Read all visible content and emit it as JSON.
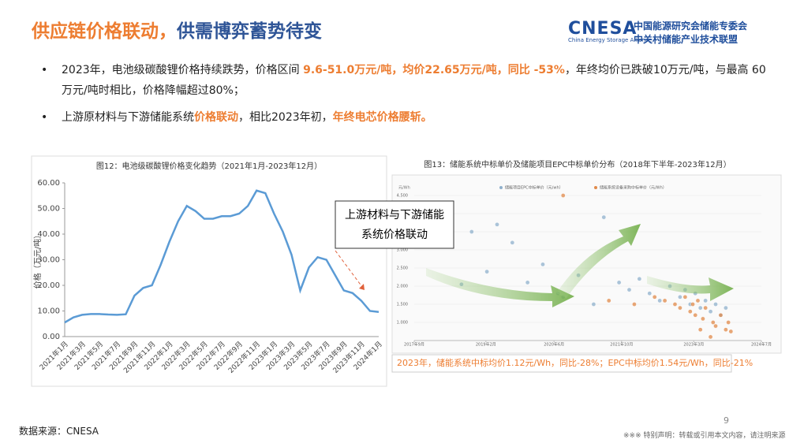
{
  "header": {
    "title_parts": [
      "供应链价格联动，",
      "供需博弈蓄势待变"
    ],
    "logo": {
      "name": "CNESA",
      "line1": "中国能源研究会储能专委会",
      "line2": "中关村储能产业技术联盟",
      "english": "China Energy Storage Alliance"
    }
  },
  "bullets": [
    [
      {
        "text": "2023年，电池级碳酸锂价格持续跌势，价格区间 ",
        "highlight": false
      },
      {
        "text": "9.6-51.0万元/吨，均价22.65万元/吨，同比 -53%",
        "highlight": true
      },
      {
        "text": "，年终均价已跌破10万元/吨，与最高 60万元/吨时相比，价格降幅超过80%；",
        "highlight": false
      }
    ],
    [
      {
        "text": "上游原材料与下游储能系统",
        "highlight": false
      },
      {
        "text": "价格联动",
        "highlight": true
      },
      {
        "text": "，相比2023年初，",
        "highlight": false
      },
      {
        "text": "年终电芯价格腰斩。",
        "highlight": true
      }
    ]
  ],
  "chart_data": [
    {
      "type": "line",
      "title": "图12：电池级碳酸锂价格变化趋势（2021年1月-2023年12月）",
      "y_label": "价格（万元/吨）",
      "color": "#5b9bd5",
      "categories": [
        "2021年1月",
        null,
        "2021年3月",
        null,
        "2021年5月",
        null,
        "2021年7月",
        null,
        "2021年9月",
        null,
        "2021年11月",
        null,
        "2022年1月",
        null,
        "2022年3月",
        null,
        "2022年5月",
        null,
        "2022年7月",
        null,
        "2022年9月",
        null,
        "2022年11月",
        null,
        "2023年1月",
        null,
        "2023年3月",
        null,
        "2023年5月",
        null,
        "2023年7月",
        null,
        "2023年9月",
        null,
        "2023年11月",
        null,
        "2024年1月"
      ],
      "values": [
        5.5,
        7.5,
        8.5,
        8.8,
        8.8,
        8.6,
        8.5,
        8.7,
        16,
        19,
        20,
        28,
        37,
        45,
        51,
        49,
        46,
        46,
        47,
        47,
        48,
        51,
        57,
        56,
        48,
        41,
        32,
        18,
        27,
        31,
        30,
        24,
        18,
        17,
        14,
        10,
        9.6
      ],
      "ylim": [
        0,
        60
      ],
      "yticks": [
        {
          "value": 0,
          "label": "0.00"
        },
        {
          "value": 10,
          "label": "10.00"
        },
        {
          "value": 20,
          "label": "20.00"
        },
        {
          "value": 30,
          "label": "30.00"
        },
        {
          "value": 40,
          "label": "40.00"
        },
        {
          "value": 50,
          "label": "50.00"
        },
        {
          "value": 60,
          "label": "60.00"
        }
      ]
    },
    {
      "type": "scatter",
      "title": "图13：储能系统中标单价及储能项目EPC中标单价分布（2018年下半年-2023年12月）",
      "y_unit": "元/Wh",
      "grid": true,
      "series": [
        {
          "name": "储能项目EPC中标单价（元/wh）",
          "color": "#8fb0cc",
          "x": [
            2018.6,
            2018.8,
            2019.1,
            2019.3,
            2019.6,
            2019.9,
            2020.2,
            2020.5,
            2020.6,
            2020.9,
            2021.2,
            2021.4,
            2021.7,
            2021.9,
            2022.1,
            2022.3,
            2022.5,
            2022.7,
            2022.9,
            2023.0,
            2023.1,
            2023.2,
            2023.3,
            2023.4,
            2023.5,
            2023.6,
            2023.7,
            2023.8
          ],
          "values": [
            2.05,
            3.5,
            2.4,
            3.7,
            3.2,
            2.1,
            2.6,
            1.8,
            1.7,
            2.3,
            1.5,
            3.9,
            2.1,
            1.9,
            2.2,
            1.8,
            1.6,
            2.0,
            1.7,
            1.9,
            1.5,
            1.8,
            1.4,
            1.6,
            1.3,
            1.5,
            1.2,
            1.4
          ]
        },
        {
          "name": "储能系统设备采购中标单价（元/Wh）",
          "color": "#e08a4a",
          "x": [
            2020.6,
            2021.5,
            2022.0,
            2022.4,
            2022.6,
            2022.8,
            2022.9,
            2023.0,
            2023.1,
            2023.15,
            2023.2,
            2023.25,
            2023.3,
            2023.35,
            2023.4,
            2023.5,
            2023.55,
            2023.6,
            2023.7,
            2023.8,
            2023.85,
            2023.9
          ],
          "values": [
            4.5,
            1.6,
            1.5,
            1.7,
            1.6,
            1.5,
            1.4,
            1.7,
            1.3,
            1.5,
            1.2,
            1.6,
            0.8,
            1.1,
            1.4,
            0.6,
            1.0,
            0.9,
            1.2,
            0.8,
            1.0,
            0.75
          ]
        }
      ],
      "xlim": [
        2017.67,
        2024.5
      ],
      "xticks": [
        {
          "value": 2017.67,
          "label": "2017年9月"
        },
        {
          "value": 2019.08,
          "label": "2019年2月"
        },
        {
          "value": 2020.42,
          "label": "2020年6月"
        },
        {
          "value": 2021.75,
          "label": "2021年10月"
        },
        {
          "value": 2023.17,
          "label": "2023年3月"
        },
        {
          "value": 2024.5,
          "label": "2024年7月"
        }
      ],
      "ylim": [
        0.5,
        4.5
      ],
      "yticks": [
        {
          "value": 1.0,
          "label": "1.000"
        },
        {
          "value": 1.5,
          "label": "1.500"
        },
        {
          "value": 2.0,
          "label": "2.000"
        },
        {
          "value": 2.5,
          "label": "2.500"
        },
        {
          "value": 3.0,
          "label": "3.000"
        },
        {
          "value": 3.5,
          "label": "3.500"
        },
        {
          "value": 4.0,
          "label": "4.000"
        },
        {
          "value": 4.5,
          "label": "4.500"
        }
      ],
      "caption": "2023年，储能系统中标均价1.12元/Wh，同比-28%；EPC中标均价1.54元/Wh，同比-21%"
    }
  ],
  "callout": [
    "上游材料与下游储能",
    "系统价格联动"
  ],
  "footer": {
    "source": "数据来源：CNESA",
    "page": "9",
    "notice": "※※※ 特别声明：转载或引用本文内容，请注明来源"
  }
}
